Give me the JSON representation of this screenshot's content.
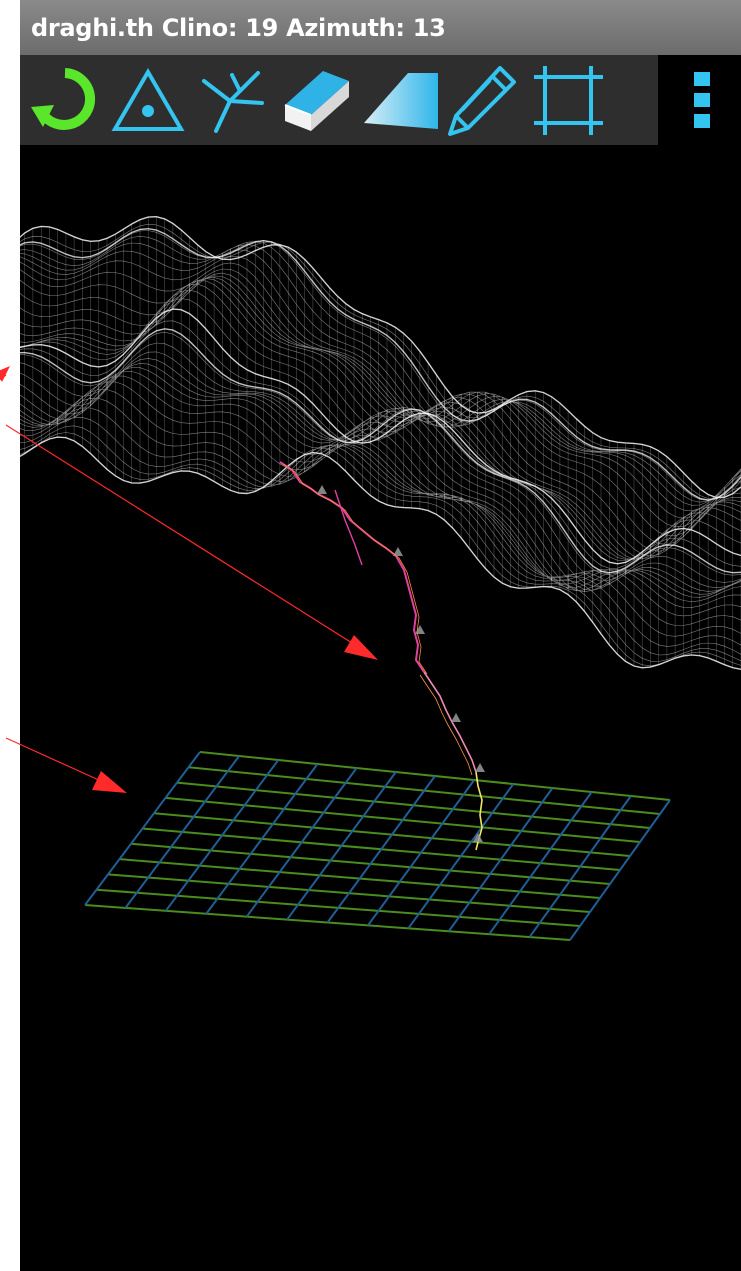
{
  "title_bar": {
    "text": "draghi.th Clino: 19 Azimuth: 13"
  },
  "toolbar": {
    "tools": [
      {
        "icon": "reset-view-icon",
        "color": "#5ae62a"
      },
      {
        "icon": "station-triangle-icon",
        "color": "#33c4f0"
      },
      {
        "icon": "splay-legs-icon",
        "color": "#33c4f0"
      },
      {
        "icon": "eraser-icon",
        "color": "#33c4f0"
      },
      {
        "icon": "surface-icon",
        "color": "#33c4f0"
      },
      {
        "icon": "pencil-icon",
        "color": "#33c4f0"
      },
      {
        "icon": "frame-icon",
        "color": "#33c4f0"
      }
    ],
    "menu_icon": "overflow-menu-icon"
  },
  "colors": {
    "title_bar": "#7a7a7a",
    "toolbar_bg": "#2e2e2e",
    "accent_blue": "#33c4f0",
    "accent_green": "#5ae62a",
    "viewport_bg": "#000000",
    "terrain": "#e6e6e6",
    "survey_line": "#e040a0",
    "survey_lower": "#f2e860",
    "grid_green": "#4a8c1e",
    "grid_blue": "#1f5f95",
    "annotation_arrow": "#ff2a2a"
  },
  "scene": {
    "terrain_mesh": "terrain-dem-mesh",
    "cave_survey": "cave-survey-polyline",
    "reference_grid": "reference-grid-plane"
  }
}
